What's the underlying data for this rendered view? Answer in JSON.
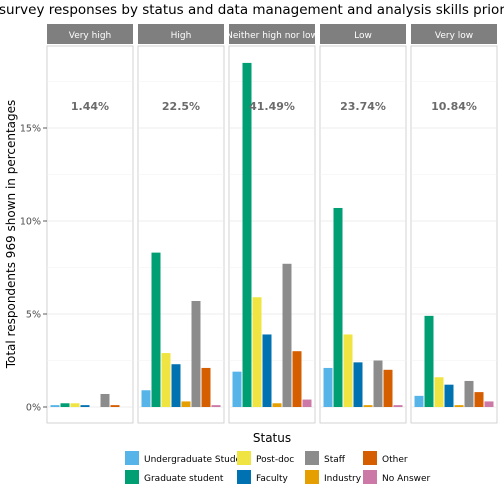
{
  "chart_data": {
    "type": "bar",
    "title": "Pre-survey responses by status and data management and analysis skills prior the",
    "xlabel": "Status",
    "ylabel": "Total respondents 969 shown in percentages",
    "ylim": [
      0,
      20
    ],
    "yticks": [
      0,
      5,
      10,
      15
    ],
    "ytick_labels": [
      "0%",
      "5%",
      "10%",
      "15%"
    ],
    "grid": true,
    "legend_position": "bottom",
    "series": [
      {
        "name": "Undergraduate Student",
        "color": "#56B4E9"
      },
      {
        "name": "Graduate student",
        "color": "#009E73"
      },
      {
        "name": "Post-doc",
        "color": "#F0E442"
      },
      {
        "name": "Faculty",
        "color": "#0072B2"
      },
      {
        "name": "Industry",
        "color": "#E69F00"
      },
      {
        "name": "Staff",
        "color": "#8C8C8C"
      },
      {
        "name": "Other",
        "color": "#D55E00"
      },
      {
        "name": "No Answer",
        "color": "#CC79A7"
      }
    ],
    "legend_order": [
      "Undergraduate Student",
      "Graduate student",
      "Post-doc",
      "Faculty",
      "Staff",
      "Industry",
      "Other",
      "No Answer"
    ],
    "bar_order": [
      "Undergraduate Student",
      "Graduate student",
      "Post-doc",
      "Faculty",
      "Industry",
      "Staff",
      "Other",
      "No Answer"
    ],
    "panels": [
      {
        "label": "Very high",
        "annotation": "1.44%",
        "values": [
          0.1,
          0.2,
          0.2,
          0.1,
          0.0,
          0.7,
          0.1,
          0.0
        ]
      },
      {
        "label": "High",
        "annotation": "22.5%",
        "values": [
          0.9,
          8.3,
          2.9,
          2.3,
          0.3,
          5.7,
          2.1,
          0.1
        ]
      },
      {
        "label": "Neither high nor low",
        "annotation": "41.49%",
        "values": [
          1.9,
          18.5,
          5.9,
          3.9,
          0.2,
          7.7,
          3.0,
          0.4
        ]
      },
      {
        "label": "Low",
        "annotation": "23.74%",
        "values": [
          2.1,
          10.7,
          3.9,
          2.4,
          0.1,
          2.5,
          2.0,
          0.1
        ]
      },
      {
        "label": "Very low",
        "annotation": "10.84%",
        "values": [
          0.6,
          4.9,
          1.6,
          1.2,
          0.1,
          1.4,
          0.8,
          0.3
        ]
      }
    ]
  }
}
